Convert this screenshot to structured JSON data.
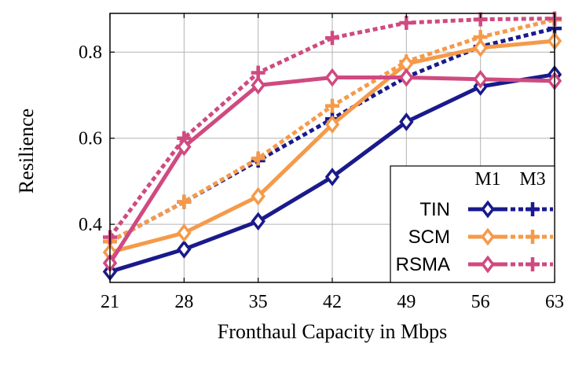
{
  "chart_data": {
    "type": "line",
    "xlabel": "Fronthaul Capacity in Mbps",
    "ylabel": "Resilience",
    "x": [
      21,
      28,
      35,
      42,
      49,
      56,
      63
    ],
    "xlim": [
      21,
      63
    ],
    "ylim": [
      0.265,
      0.89
    ],
    "yticks": [
      0.4,
      0.6,
      0.8
    ],
    "ytick_labels": [
      "0.4",
      "0.6",
      "0.8"
    ],
    "grid": true,
    "legend_position": "bottom-right",
    "legend_columns": [
      "M1",
      "M3"
    ],
    "legend_rows": [
      "TIN",
      "SCM",
      "RSMA"
    ],
    "series": [
      {
        "name": "TIN",
        "method": "M1",
        "style": "solid",
        "marker": "diamond",
        "color": "#1a1a8c",
        "values": [
          0.29,
          0.342,
          0.407,
          0.51,
          0.638,
          0.72,
          0.748
        ]
      },
      {
        "name": "TIN",
        "method": "M3",
        "style": "dotted",
        "marker": "plus",
        "color": "#1a1a8c",
        "values": [
          0.36,
          0.452,
          0.548,
          0.645,
          0.742,
          0.813,
          0.855
        ]
      },
      {
        "name": "SCM",
        "method": "M1",
        "style": "solid",
        "marker": "diamond",
        "color": "#f59a4a",
        "values": [
          0.335,
          0.38,
          0.465,
          0.632,
          0.773,
          0.81,
          0.826
        ]
      },
      {
        "name": "SCM",
        "method": "M3",
        "style": "dotted",
        "marker": "plus",
        "color": "#f59a4a",
        "values": [
          0.36,
          0.452,
          0.553,
          0.675,
          0.778,
          0.835,
          0.875
        ]
      },
      {
        "name": "RSMA",
        "method": "M1",
        "style": "solid",
        "marker": "diamond",
        "color": "#cf4a80",
        "values": [
          0.31,
          0.58,
          0.723,
          0.741,
          0.741,
          0.737,
          0.733
        ]
      },
      {
        "name": "RSMA",
        "method": "M3",
        "style": "dotted",
        "marker": "plus",
        "color": "#cf4a80",
        "values": [
          0.37,
          0.6,
          0.752,
          0.833,
          0.868,
          0.876,
          0.878
        ]
      }
    ]
  }
}
